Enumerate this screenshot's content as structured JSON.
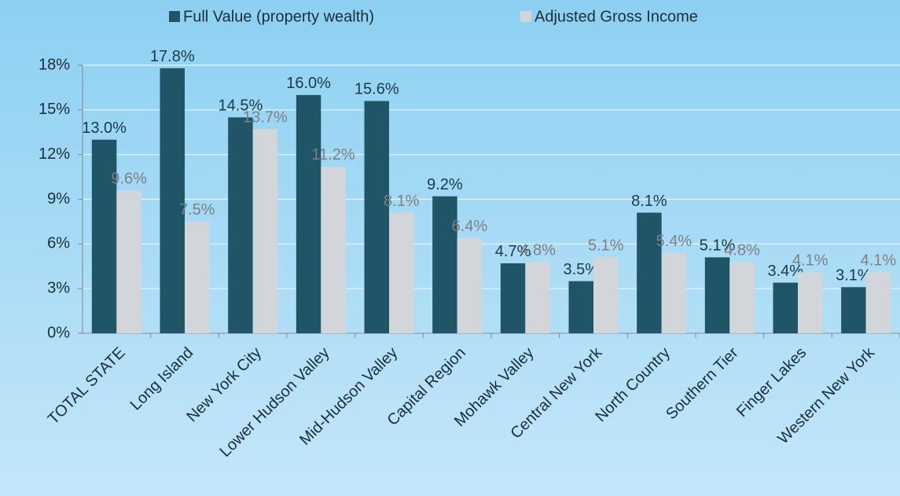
{
  "chart_data": {
    "type": "bar",
    "categories": [
      "TOTAL STATE",
      "Long Island",
      "New York City",
      "Lower Hudson Valley",
      "Mid-Hudson Valley",
      "Capital Region",
      "Mohawk Valley",
      "Central New York",
      "North Country",
      "Southern Tier",
      "Finger Lakes",
      "Western New York"
    ],
    "series": [
      {
        "name": "Full Value (property wealth)",
        "color": "#1f5566",
        "values": [
          13.0,
          17.8,
          14.5,
          16.0,
          15.6,
          9.2,
          4.7,
          3.5,
          8.1,
          5.1,
          3.4,
          3.1
        ],
        "value_labels": [
          "13.0%",
          "17.8%",
          "14.5%",
          "16.0%",
          "15.6%",
          "9.2%",
          "4.7%",
          "3.5%",
          "8.1%",
          "5.1%",
          "3.4%",
          "3.1%"
        ]
      },
      {
        "name": "Adjusted Gross Income",
        "color": "#d2d6da",
        "values": [
          9.6,
          7.5,
          13.7,
          11.2,
          8.1,
          6.4,
          4.8,
          5.1,
          5.4,
          4.8,
          4.1,
          4.1
        ],
        "value_labels": [
          "9.6%",
          "7.5%",
          "13.7%",
          "11.2%",
          "8.1%",
          "6.4%",
          "4.8%",
          "5.1%",
          "5.4%",
          "4.8%",
          "4.1%",
          "4.1%"
        ]
      }
    ],
    "ylim": [
      0,
      18
    ],
    "yticks": [
      {
        "value": 0,
        "label": "0%"
      },
      {
        "value": 3,
        "label": "3%"
      },
      {
        "value": 6,
        "label": "6%"
      },
      {
        "value": 9,
        "label": "9%"
      },
      {
        "value": 12,
        "label": "12%"
      },
      {
        "value": 15,
        "label": "15%"
      },
      {
        "value": 18,
        "label": "18%"
      }
    ],
    "grid": true,
    "legend": "top"
  }
}
